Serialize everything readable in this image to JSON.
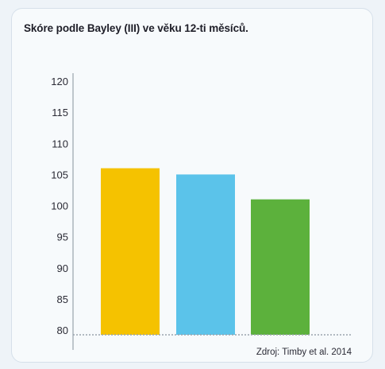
{
  "chart_data": {
    "type": "bar",
    "title": "Skóre podle Bayley (III) ve věku 12-ti měsíců.",
    "categories": [
      "",
      "",
      ""
    ],
    "values": [
      106,
      105,
      101
    ],
    "colors": [
      "#f5c200",
      "#5bc3ea",
      "#5cb13c"
    ],
    "ylim": [
      80,
      120
    ],
    "yticks": [
      "120",
      "115",
      "110",
      "105",
      "100",
      "95",
      "90",
      "85",
      "80"
    ],
    "xlabel": "",
    "ylabel": "",
    "grid": false,
    "source": "Zdroj: Timby et al. 2014"
  }
}
